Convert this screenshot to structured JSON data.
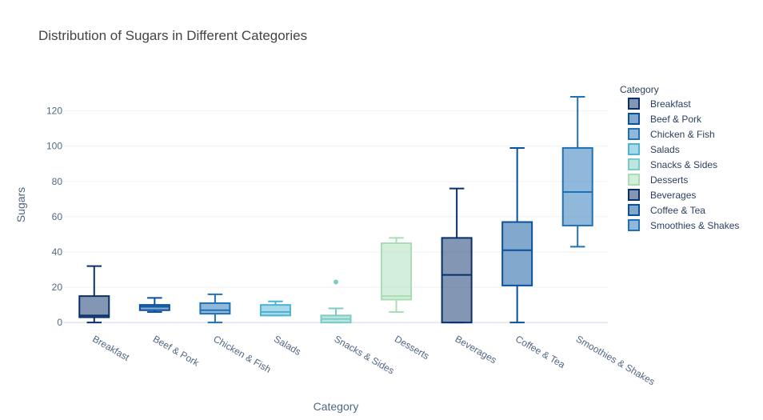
{
  "chart_data": {
    "type": "box",
    "title": "Distribution of Sugars in Different Categories",
    "xlabel": "Category",
    "ylabel": "Sugars",
    "ylim": [
      -4,
      133
    ],
    "yticks": [
      0,
      20,
      40,
      60,
      80,
      100,
      120
    ],
    "grid": true,
    "legend": {
      "title": "Category",
      "placement": "right"
    },
    "series": [
      {
        "name": "Breakfast",
        "min": 0,
        "q1": 3,
        "median": 4,
        "q3": 15,
        "max": 32,
        "outliers": [],
        "color": "#08306b"
      },
      {
        "name": "Beef & Pork",
        "min": 6,
        "q1": 7,
        "median": 9,
        "q3": 10,
        "max": 14,
        "outliers": [],
        "color": "#08519c"
      },
      {
        "name": "Chicken & Fish",
        "min": 0,
        "q1": 5,
        "median": 7,
        "q3": 11,
        "max": 16,
        "outliers": [],
        "color": "#2171b5"
      },
      {
        "name": "Salads",
        "min": 4,
        "q1": 4,
        "median": 6,
        "q3": 10,
        "max": 12,
        "outliers": [],
        "color": "#4eb3d3"
      },
      {
        "name": "Snacks & Sides",
        "min": 0,
        "q1": 0,
        "median": 2,
        "q3": 4,
        "max": 8,
        "outliers": [
          23
        ],
        "color": "#7bccc4"
      },
      {
        "name": "Desserts",
        "min": 6,
        "q1": 13,
        "median": 15,
        "q3": 45,
        "max": 48,
        "outliers": [],
        "color": "#a8ddb5"
      },
      {
        "name": "Beverages",
        "min": 0,
        "q1": 0,
        "median": 27,
        "q3": 48,
        "max": 76,
        "outliers": [],
        "color": "#08306b"
      },
      {
        "name": "Coffee & Tea",
        "min": 0,
        "q1": 21,
        "median": 41,
        "q3": 57,
        "max": 99,
        "outliers": [],
        "color": "#08519c"
      },
      {
        "name": "Smoothies & Shakes",
        "min": 43,
        "q1": 55,
        "median": 74,
        "q3": 99,
        "max": 128,
        "outliers": [],
        "color": "#2171b5"
      }
    ]
  }
}
